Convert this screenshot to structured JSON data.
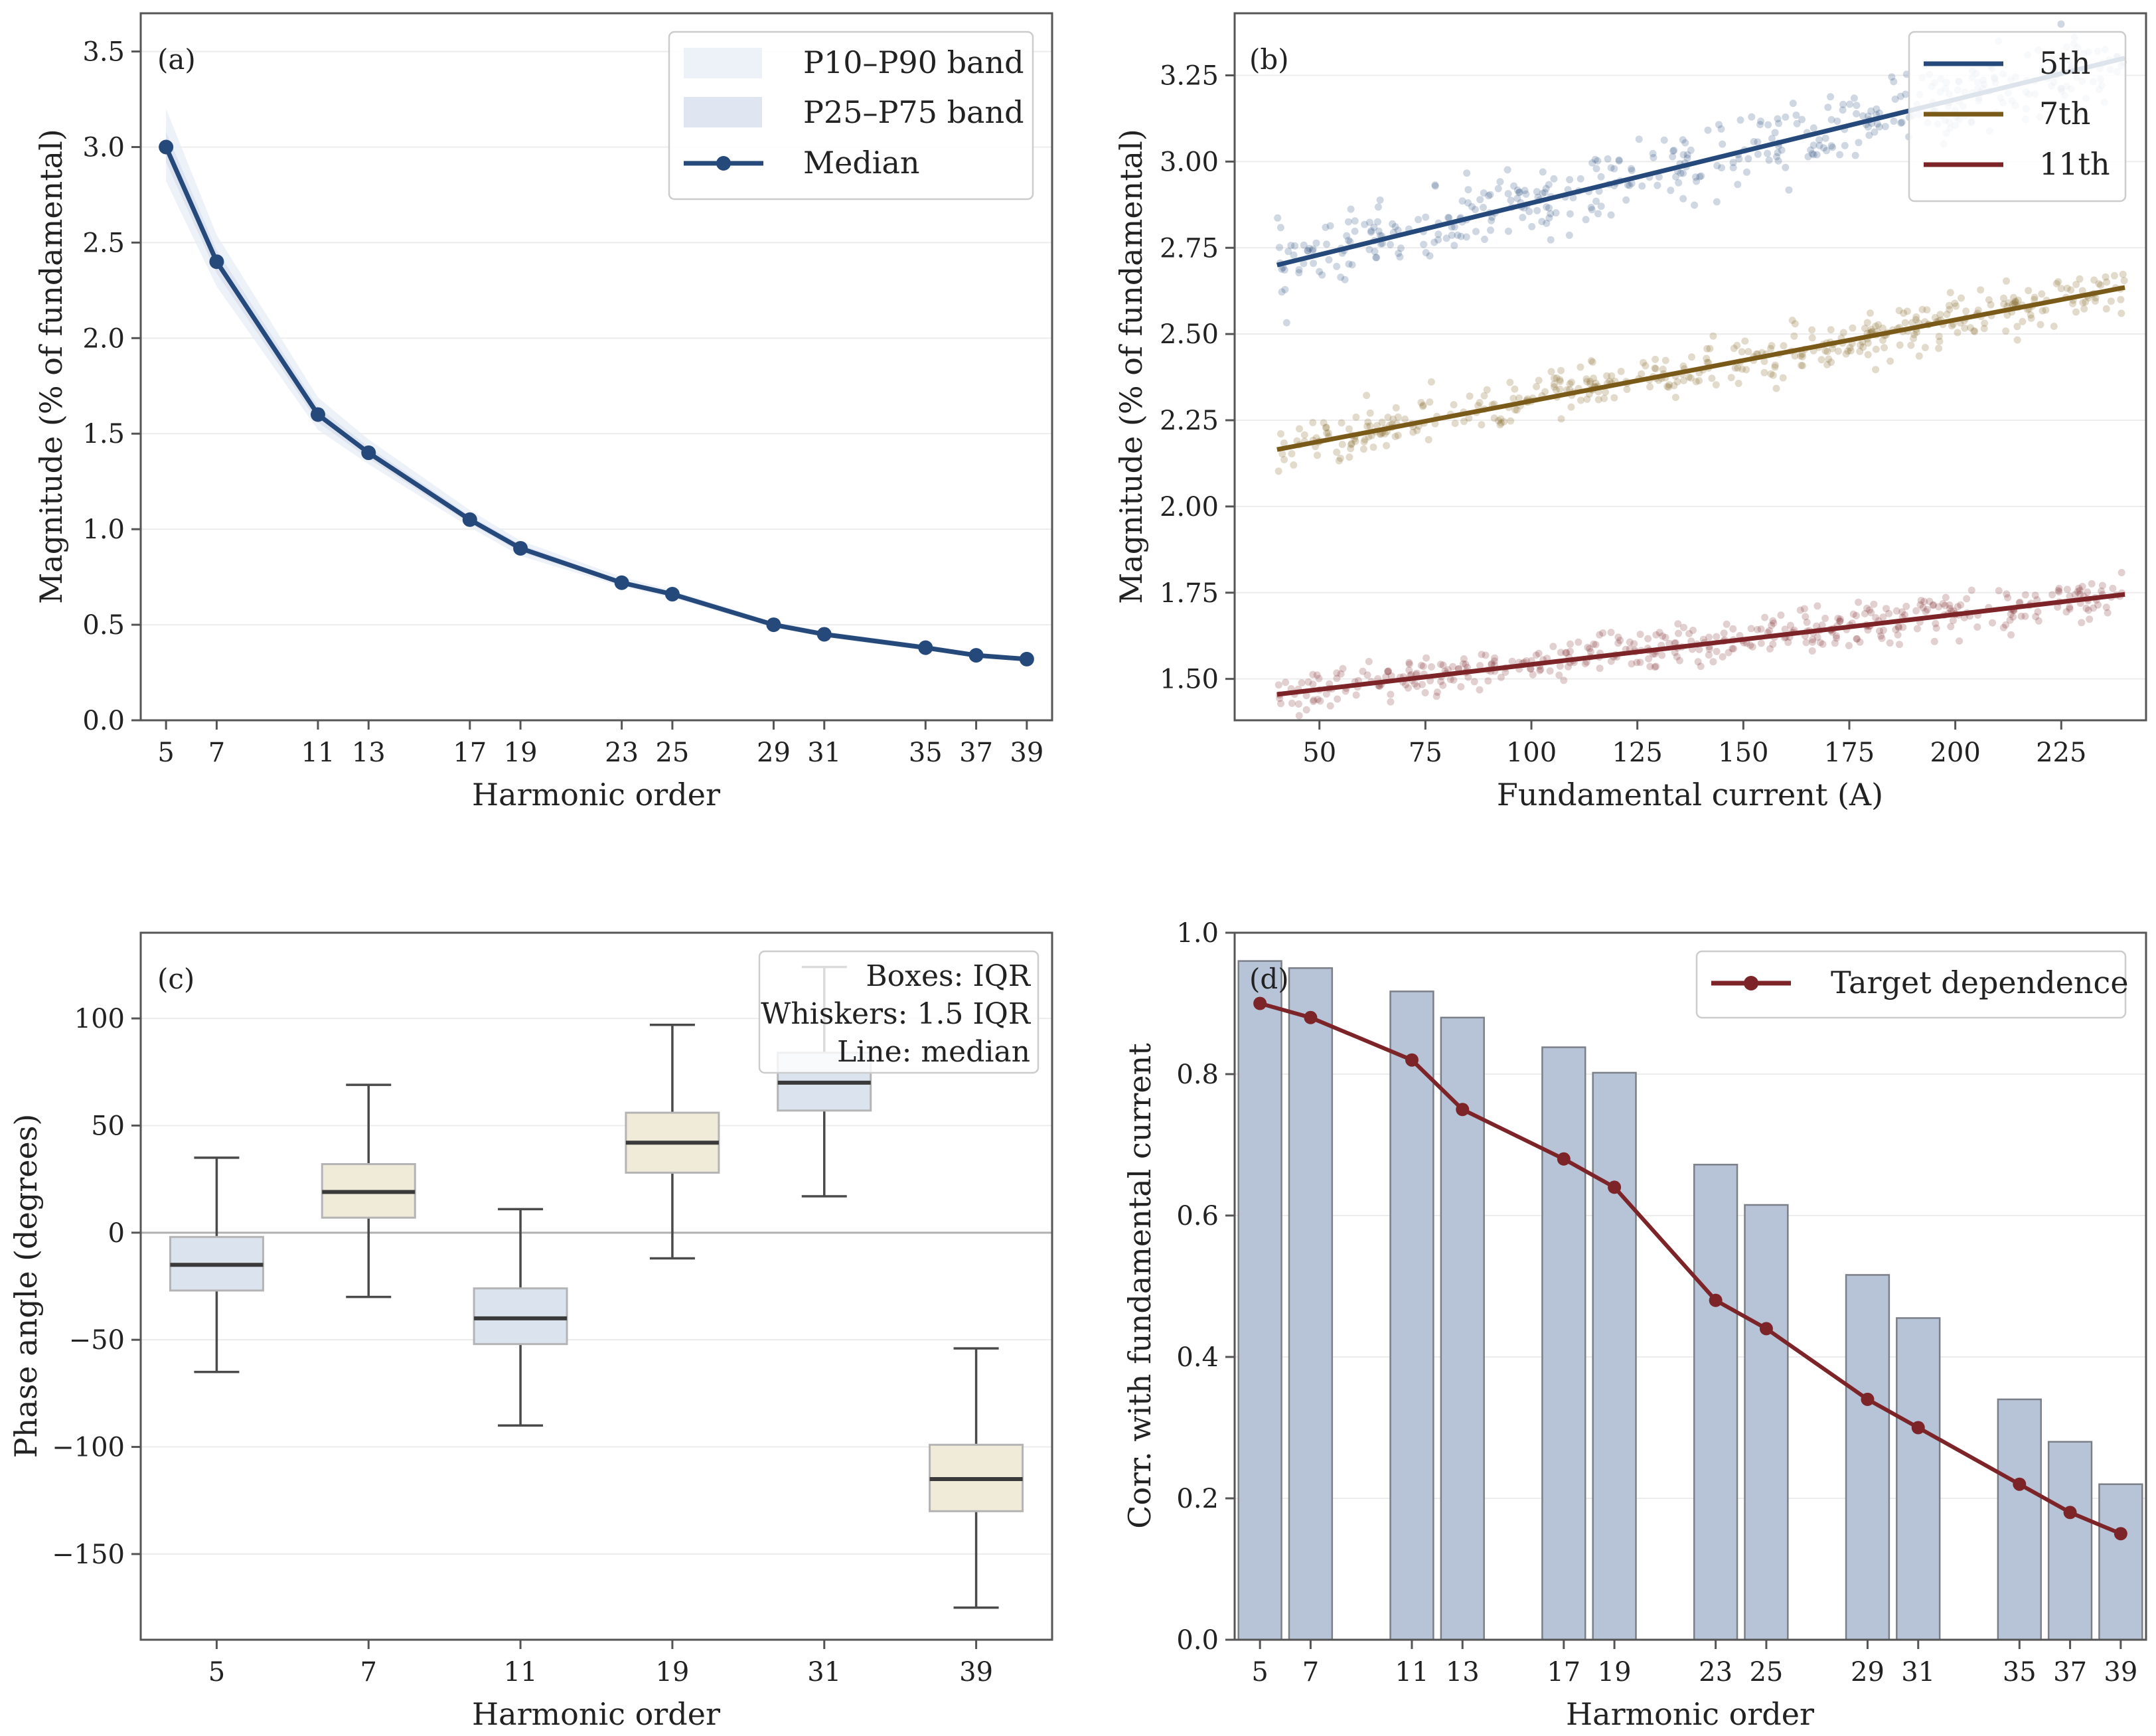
{
  "colors": {
    "navy": "#24497a",
    "olive": "#7a5a18",
    "maroon": "#7c2428",
    "bar_fill": "#b7c4d7",
    "bar_edge": "#7a7f88",
    "box_blue": "#dbe3ee",
    "box_beige": "#f0ead8",
    "band_outer": "#e9eef6",
    "band_inner": "#d9e1ee"
  },
  "chart_data": [
    {
      "id": "a",
      "panel_label": "(a)",
      "type": "line",
      "xlabel": "Harmonic order",
      "ylabel": "Magnitude (% of fundamental)",
      "x": [
        5,
        7,
        11,
        13,
        17,
        19,
        23,
        25,
        29,
        31,
        35,
        37,
        39
      ],
      "x_tick_labels": [
        "5",
        "7",
        "11",
        "13",
        "17",
        "19",
        "23",
        "25",
        "29",
        "31",
        "35",
        "37",
        "39"
      ],
      "median": [
        3.0,
        2.4,
        1.6,
        1.4,
        1.05,
        0.9,
        0.72,
        0.66,
        0.5,
        0.45,
        0.38,
        0.34,
        0.32
      ],
      "p25": [
        2.92,
        2.34,
        1.56,
        1.37,
        1.03,
        0.88,
        0.71,
        0.65,
        0.49,
        0.44,
        0.37,
        0.335,
        0.315
      ],
      "p75": [
        3.08,
        2.46,
        1.64,
        1.43,
        1.07,
        0.92,
        0.73,
        0.67,
        0.51,
        0.46,
        0.39,
        0.345,
        0.325
      ],
      "p10": [
        2.82,
        2.27,
        1.52,
        1.34,
        1.01,
        0.86,
        0.7,
        0.64,
        0.485,
        0.435,
        0.365,
        0.33,
        0.31
      ],
      "p90": [
        3.2,
        2.54,
        1.69,
        1.47,
        1.1,
        0.94,
        0.75,
        0.68,
        0.515,
        0.465,
        0.395,
        0.35,
        0.33
      ],
      "xlim": [
        4.0,
        40.0
      ],
      "ylim": [
        0.0,
        3.7
      ],
      "yticks": [
        0.0,
        0.5,
        1.0,
        1.5,
        2.0,
        2.5,
        3.0,
        3.5
      ],
      "ytick_labels": [
        "0.0",
        "0.5",
        "1.0",
        "1.5",
        "2.0",
        "2.5",
        "3.0",
        "3.5"
      ],
      "legend": [
        "P10–P90 band",
        "P25–P75 band",
        "Median"
      ],
      "legend_position": "top-right"
    },
    {
      "id": "b",
      "panel_label": "(b)",
      "type": "scatter",
      "xlabel": "Fundamental current (A)",
      "ylabel": "Magnitude (% of fundamental)",
      "xlim": [
        30,
        245
      ],
      "ylim": [
        1.38,
        3.43
      ],
      "xticks": [
        50,
        75,
        100,
        125,
        150,
        175,
        200,
        225
      ],
      "xtick_labels": [
        "50",
        "75",
        "100",
        "125",
        "150",
        "175",
        "200",
        "225"
      ],
      "yticks": [
        1.5,
        1.75,
        2.0,
        2.25,
        2.5,
        2.75,
        3.0,
        3.25
      ],
      "ytick_labels": [
        "1.50",
        "1.75",
        "2.00",
        "2.25",
        "2.50",
        "2.75",
        "3.00",
        "3.25"
      ],
      "current_range": [
        40,
        240
      ],
      "points_per_series": 450,
      "series": [
        {
          "name": "5th",
          "color": "#24497a",
          "fit": [
            {
              "x": 40,
              "y": 2.7
            },
            {
              "x": 240,
              "y": 3.3
            }
          ],
          "noise_sd": 0.05
        },
        {
          "name": "7th",
          "color": "#7a5a18",
          "fit": [
            {
              "x": 40,
              "y": 2.165
            },
            {
              "x": 240,
              "y": 2.635
            }
          ],
          "noise_sd": 0.035
        },
        {
          "name": "11th",
          "color": "#7c2428",
          "fit": [
            {
              "x": 40,
              "y": 1.455
            },
            {
              "x": 240,
              "y": 1.745
            }
          ],
          "noise_sd": 0.03
        }
      ],
      "legend": [
        "5th",
        "7th",
        "11th"
      ],
      "legend_position": "top-right"
    },
    {
      "id": "c",
      "panel_label": "(c)",
      "type": "box",
      "xlabel": "Harmonic order",
      "ylabel": "Phase angle (degrees)",
      "categories": [
        "5",
        "7",
        "11",
        "19",
        "31",
        "39"
      ],
      "boxes": [
        {
          "q1": -27,
          "median": -15,
          "q3": -2,
          "whislo": -65,
          "whishi": 35,
          "fill": "blue"
        },
        {
          "q1": 7,
          "median": 19,
          "q3": 32,
          "whislo": -30,
          "whishi": 69,
          "fill": "beige"
        },
        {
          "q1": -52,
          "median": -40,
          "q3": -26,
          "whislo": -90,
          "whishi": 11,
          "fill": "blue"
        },
        {
          "q1": 28,
          "median": 42,
          "q3": 56,
          "whislo": -12,
          "whishi": 97,
          "fill": "beige"
        },
        {
          "q1": 57,
          "median": 70,
          "q3": 84,
          "whislo": 17,
          "whishi": 124,
          "fill": "blue"
        },
        {
          "q1": -130,
          "median": -115,
          "q3": -99,
          "whislo": -175,
          "whishi": -54,
          "fill": "beige"
        }
      ],
      "ylim": [
        -190,
        140
      ],
      "yticks": [
        -150,
        -100,
        -50,
        0,
        50,
        100
      ],
      "ytick_labels": [
        "−150",
        "−100",
        "−50",
        "0",
        "50",
        "100"
      ],
      "annotation_lines": [
        "Boxes: IQR",
        "Whiskers: 1.5 IQR",
        "Line: median"
      ],
      "legend_position": "top-right"
    },
    {
      "id": "d",
      "panel_label": "(d)",
      "type": "bar",
      "xlabel": "Harmonic order",
      "ylabel": "Corr. with fundamental current",
      "x": [
        5,
        7,
        11,
        13,
        17,
        19,
        23,
        25,
        29,
        31,
        35,
        37,
        39
      ],
      "x_tick_labels": [
        "5",
        "7",
        "11",
        "13",
        "17",
        "19",
        "23",
        "25",
        "29",
        "31",
        "35",
        "37",
        "39"
      ],
      "values": [
        0.96,
        0.95,
        0.917,
        0.88,
        0.838,
        0.802,
        0.672,
        0.615,
        0.516,
        0.455,
        0.34,
        0.28,
        0.22
      ],
      "line_series": {
        "name": "Target dependence",
        "values": [
          0.9,
          0.88,
          0.82,
          0.75,
          0.68,
          0.64,
          0.48,
          0.44,
          0.34,
          0.3,
          0.22,
          0.18,
          0.15
        ]
      },
      "xlim": [
        4.0,
        40.0
      ],
      "ylim": [
        0.0,
        1.0
      ],
      "yticks": [
        0.0,
        0.2,
        0.4,
        0.6,
        0.8,
        1.0
      ],
      "ytick_labels": [
        "0.0",
        "0.2",
        "0.4",
        "0.6",
        "0.8",
        "1.0"
      ],
      "legend": [
        "Target dependence"
      ],
      "legend_position": "top-right"
    }
  ]
}
